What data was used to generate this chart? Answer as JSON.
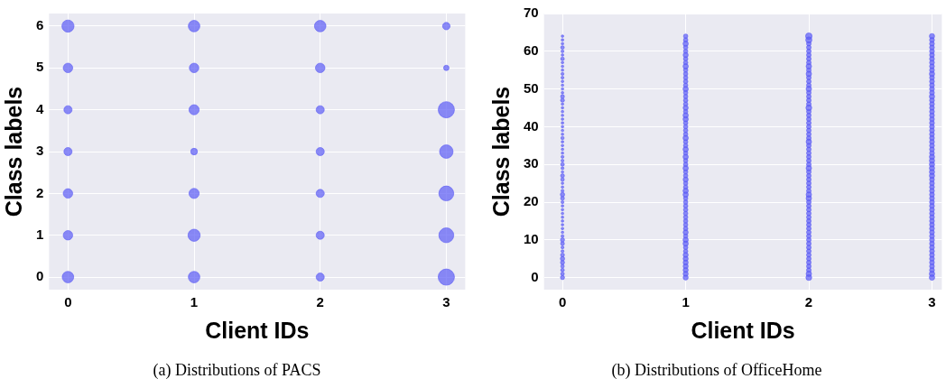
{
  "chart_data": [
    {
      "type": "bubble",
      "xlabel": "Client IDs",
      "ylabel": "Class labels",
      "annotations": [
        "(a) Distributions of PACS"
      ],
      "xlim": [
        -0.15,
        3.15
      ],
      "ylim": [
        -0.3,
        6.3
      ],
      "xticks": [
        0,
        1,
        2,
        3
      ],
      "yticks": [
        0,
        1,
        2,
        3,
        4,
        5,
        6
      ],
      "grid": true,
      "legend": false,
      "series": [
        {
          "color": "#5b5bf5",
          "x": [
            0,
            0,
            0,
            0,
            0,
            0,
            0,
            1,
            1,
            1,
            1,
            1,
            1,
            1,
            2,
            2,
            2,
            2,
            2,
            2,
            2,
            3,
            3,
            3,
            3,
            3,
            3,
            3
          ],
          "values": [
            0,
            1,
            2,
            3,
            4,
            5,
            6,
            0,
            1,
            2,
            3,
            4,
            5,
            6,
            0,
            1,
            2,
            3,
            4,
            5,
            6,
            0,
            1,
            2,
            3,
            4,
            5,
            6
          ],
          "sizes": [
            0.5,
            0.34,
            0.34,
            0.25,
            0.25,
            0.34,
            0.56,
            0.5,
            0.56,
            0.39,
            0.17,
            0.39,
            0.34,
            0.5,
            0.25,
            0.25,
            0.25,
            0.25,
            0.25,
            0.34,
            0.5,
            1,
            0.84,
            0.84,
            0.69,
            1,
            0.11,
            0.21
          ]
        }
      ]
    },
    {
      "type": "bubble",
      "xlabel": "Client IDs",
      "ylabel": "Class labels",
      "annotations": [
        "(b) Distributions of OfficeHome"
      ],
      "xlim": [
        -0.15,
        3.08
      ],
      "ylim": [
        -3.2,
        70
      ],
      "xticks": [
        0,
        1,
        2,
        3
      ],
      "yticks": [
        0,
        10,
        20,
        30,
        40,
        50,
        60,
        70
      ],
      "grid": true,
      "legend": false,
      "series": [
        {
          "color": "#5b5bf5",
          "x": [
            0,
            0,
            0,
            0,
            0,
            0,
            0,
            0,
            0,
            0,
            0,
            0,
            0,
            0,
            0,
            0,
            0,
            0,
            0,
            0,
            0,
            0,
            0,
            0,
            0,
            0,
            0,
            0,
            0,
            0,
            0,
            0,
            0,
            0,
            0,
            0,
            0,
            0,
            0,
            0,
            0,
            0,
            0,
            0,
            0,
            0,
            0,
            0,
            0,
            0,
            0,
            0,
            0,
            0,
            0,
            0,
            0,
            0,
            0,
            0,
            0,
            0,
            0,
            0,
            0
          ],
          "values": [
            0,
            1,
            2,
            3,
            4,
            5,
            6,
            7,
            8,
            9,
            10,
            11,
            12,
            13,
            14,
            15,
            16,
            17,
            18,
            19,
            20,
            21,
            22,
            23,
            24,
            25,
            26,
            27,
            28,
            29,
            30,
            31,
            32,
            33,
            34,
            35,
            36,
            37,
            38,
            39,
            40,
            41,
            42,
            43,
            44,
            45,
            46,
            47,
            48,
            49,
            50,
            51,
            52,
            53,
            54,
            55,
            56,
            57,
            58,
            59,
            60,
            61,
            62,
            63,
            64
          ],
          "sizes": [
            0.4,
            0.3,
            0.3,
            0.3,
            0.4,
            0.45,
            0.35,
            0.2,
            0.2,
            0.35,
            0.4,
            0.2,
            0.15,
            0.15,
            0.15,
            0.15,
            0.15,
            0.15,
            0.15,
            0.15,
            0.2,
            0.35,
            0.45,
            0.2,
            0.15,
            0.15,
            0.3,
            0.35,
            0.15,
            0.2,
            0.3,
            0.2,
            0.2,
            0.15,
            0.15,
            0.15,
            0.15,
            0.25,
            0.15,
            0.15,
            0.15,
            0.15,
            0.15,
            0.15,
            0.15,
            0.15,
            0.15,
            0.35,
            0.35,
            0.15,
            0.15,
            0.15,
            0.15,
            0.2,
            0.2,
            0.15,
            0.15,
            0.15,
            0.3,
            0.15,
            0.2,
            0.3,
            0.15,
            0.15,
            0.15
          ]
        },
        {
          "color": "#5b5bf5",
          "x": [
            1,
            1,
            1,
            1,
            1,
            1,
            1,
            1,
            1,
            1,
            1,
            1,
            1,
            1,
            1,
            1,
            1,
            1,
            1,
            1,
            1,
            1,
            1,
            1,
            1,
            1,
            1,
            1,
            1,
            1,
            1,
            1,
            1,
            1,
            1,
            1,
            1,
            1,
            1,
            1,
            1,
            1,
            1,
            1,
            1,
            1,
            1,
            1,
            1,
            1,
            1,
            1,
            1,
            1,
            1,
            1,
            1,
            1,
            1,
            1,
            1,
            1,
            1,
            1,
            1
          ],
          "values": [
            0,
            1,
            2,
            3,
            4,
            5,
            6,
            7,
            8,
            9,
            10,
            11,
            12,
            13,
            14,
            15,
            16,
            17,
            18,
            19,
            20,
            21,
            22,
            23,
            24,
            25,
            26,
            27,
            28,
            29,
            30,
            31,
            32,
            33,
            34,
            35,
            36,
            37,
            38,
            39,
            40,
            41,
            42,
            43,
            44,
            45,
            46,
            47,
            48,
            49,
            50,
            51,
            52,
            53,
            54,
            55,
            56,
            57,
            58,
            59,
            60,
            61,
            62,
            63,
            64
          ],
          "sizes": [
            0.6,
            0.6,
            0.6,
            0.6,
            0.6,
            0.6,
            0.6,
            0.45,
            0.45,
            0.65,
            0.65,
            0.45,
            0.6,
            0.45,
            0.45,
            0.45,
            0.45,
            0.45,
            0.45,
            0.45,
            0.45,
            0.45,
            0.65,
            0.65,
            0.45,
            0.45,
            0.6,
            0.45,
            0.45,
            0.65,
            0.45,
            0.45,
            0.65,
            0.45,
            0.65,
            0.45,
            0.45,
            0.65,
            0.45,
            0.45,
            0.45,
            0.45,
            0.65,
            0.65,
            0.45,
            0.6,
            0.45,
            0.45,
            0.45,
            0.45,
            0.65,
            0.45,
            0.45,
            0.45,
            0.45,
            0.45,
            0.65,
            0.45,
            0.45,
            0.6,
            0.45,
            0.45,
            0.65,
            0.45,
            0.45
          ]
        },
        {
          "color": "#5b5bf5",
          "x": [
            2,
            2,
            2,
            2,
            2,
            2,
            2,
            2,
            2,
            2,
            2,
            2,
            2,
            2,
            2,
            2,
            2,
            2,
            2,
            2,
            2,
            2,
            2,
            2,
            2,
            2,
            2,
            2,
            2,
            2,
            2,
            2,
            2,
            2,
            2,
            2,
            2,
            2,
            2,
            2,
            2,
            2,
            2,
            2,
            2,
            2,
            2,
            2,
            2,
            2,
            2,
            2,
            2,
            2,
            2,
            2,
            2,
            2,
            2,
            2,
            2,
            2,
            2,
            2,
            2
          ],
          "values": [
            0,
            1,
            2,
            3,
            4,
            5,
            6,
            7,
            8,
            9,
            10,
            11,
            12,
            13,
            14,
            15,
            16,
            17,
            18,
            19,
            20,
            21,
            22,
            23,
            24,
            25,
            26,
            27,
            28,
            29,
            30,
            31,
            32,
            33,
            34,
            35,
            36,
            37,
            38,
            39,
            40,
            41,
            42,
            43,
            44,
            45,
            46,
            47,
            48,
            49,
            50,
            51,
            52,
            53,
            54,
            55,
            56,
            57,
            58,
            59,
            60,
            61,
            62,
            63,
            64
          ],
          "sizes": [
            0.8,
            0.7,
            0.5,
            0.5,
            0.5,
            0.5,
            0.5,
            0.5,
            0.5,
            0.5,
            0.5,
            0.5,
            0.5,
            0.5,
            0.5,
            0.5,
            0.5,
            0.5,
            0.5,
            0.5,
            0.5,
            0.7,
            0.7,
            0.5,
            0.5,
            0.5,
            0.5,
            0.5,
            0.5,
            0.7,
            0.5,
            0.5,
            0.5,
            0.5,
            0.5,
            0.5,
            0.7,
            0.5,
            0.5,
            0.5,
            0.5,
            0.5,
            0.5,
            0.5,
            0.5,
            0.8,
            0.5,
            0.5,
            0.5,
            0.5,
            0.7,
            0.5,
            0.5,
            0.5,
            0.7,
            0.5,
            0.7,
            0.5,
            0.5,
            0.5,
            0.5,
            0.5,
            0.5,
            0.9,
            1
          ]
        },
        {
          "color": "#5b5bf5",
          "x": [
            3,
            3,
            3,
            3,
            3,
            3,
            3,
            3,
            3,
            3,
            3,
            3,
            3,
            3,
            3,
            3,
            3,
            3,
            3,
            3,
            3,
            3,
            3,
            3,
            3,
            3,
            3,
            3,
            3,
            3,
            3,
            3,
            3,
            3,
            3,
            3,
            3,
            3,
            3,
            3,
            3,
            3,
            3,
            3,
            3,
            3,
            3,
            3,
            3,
            3,
            3,
            3,
            3,
            3,
            3,
            3,
            3,
            3,
            3,
            3,
            3,
            3,
            3,
            3,
            3
          ],
          "values": [
            0,
            1,
            2,
            3,
            4,
            5,
            6,
            7,
            8,
            9,
            10,
            11,
            12,
            13,
            14,
            15,
            16,
            17,
            18,
            19,
            20,
            21,
            22,
            23,
            24,
            25,
            26,
            27,
            28,
            29,
            30,
            31,
            32,
            33,
            34,
            35,
            36,
            37,
            38,
            39,
            40,
            41,
            42,
            43,
            44,
            45,
            46,
            47,
            48,
            49,
            50,
            51,
            52,
            53,
            54,
            55,
            56,
            57,
            58,
            59,
            60,
            61,
            62,
            63,
            64
          ],
          "sizes": [
            0.7,
            0.7,
            0.55,
            0.55,
            0.55,
            0.55,
            0.55,
            0.55,
            0.55,
            0.55,
            0.55,
            0.55,
            0.55,
            0.55,
            0.55,
            0.55,
            0.55,
            0.55,
            0.55,
            0.55,
            0.55,
            0.55,
            0.55,
            0.55,
            0.55,
            0.55,
            0.55,
            0.65,
            0.65,
            0.65,
            0.65,
            0.65,
            0.65,
            0.55,
            0.55,
            0.55,
            0.55,
            0.55,
            0.55,
            0.55,
            0.55,
            0.55,
            0.55,
            0.55,
            0.55,
            0.55,
            0.55,
            0.55,
            0.65,
            0.55,
            0.55,
            0.55,
            0.55,
            0.55,
            0.65,
            0.55,
            0.55,
            0.55,
            0.55,
            0.55,
            0.55,
            0.55,
            0.55,
            0.55,
            0.65
          ]
        }
      ]
    }
  ]
}
